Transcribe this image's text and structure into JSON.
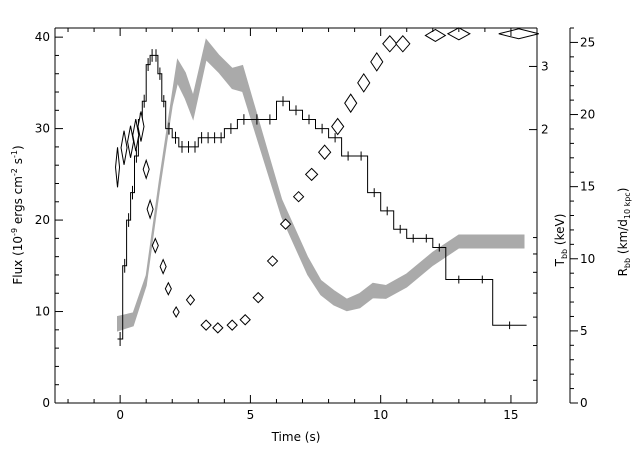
{
  "chart_data": {
    "type": "line",
    "xlabel": "Time (s)",
    "xlim": [
      -2.5,
      16
    ],
    "x_ticks": [
      0,
      5,
      10,
      15
    ],
    "y_left": {
      "label_main": "Flux (10",
      "label_exp1": "-9",
      "label_mid": " ergs cm",
      "label_exp2": "-2",
      "label_mid2": " s",
      "label_exp3": "-1",
      "label_end": ")",
      "lim": [
        0,
        41
      ],
      "ticks": [
        0,
        10,
        20,
        30,
        40
      ]
    },
    "y_mid": {
      "label_main": "T",
      "label_sub": "bb",
      "label_unit": " (keV)",
      "lim": [
        0.3457,
        3.84
      ],
      "ticks": [
        2,
        3
      ],
      "log": true
    },
    "y_right": {
      "label_main": "R",
      "label_sub1": "bb",
      "label_mid": " (km/d",
      "label_sub2": "10 kpc",
      "label_end": ")",
      "lim": [
        0,
        26
      ],
      "ticks": [
        0,
        5,
        10,
        15,
        20,
        25
      ]
    },
    "series": [
      {
        "style": "histogram",
        "axis": "left",
        "edges": [
          -0.1,
          0.1,
          0.25,
          0.4,
          0.55,
          0.7,
          0.85,
          1.0,
          1.15,
          1.3,
          1.45,
          1.6,
          1.75,
          2.0,
          2.25,
          2.5,
          2.75,
          3.0,
          3.25,
          3.5,
          3.75,
          4.0,
          4.5,
          5.0,
          5.5,
          6.0,
          6.5,
          7.0,
          7.5,
          8.0,
          8.5,
          9.0,
          9.5,
          10.0,
          10.5,
          11.0,
          11.5,
          12.0,
          12.5,
          13.5,
          14.3,
          15.6
        ],
        "values": [
          7,
          15,
          20,
          23,
          27,
          31,
          33,
          37,
          38,
          38,
          36,
          33,
          30,
          29,
          28,
          28,
          28,
          29,
          29,
          29,
          29,
          30,
          31,
          31,
          31,
          33,
          32,
          31,
          30,
          29,
          27,
          27,
          23,
          21,
          19,
          18,
          18,
          17,
          13.5,
          13.5,
          8.5
        ]
      },
      {
        "style": "band",
        "axis": "right",
        "x": [
          -0.1,
          0.5,
          1.0,
          1.5,
          2.0,
          2.2,
          2.5,
          2.8,
          3.3,
          3.8,
          4.3,
          4.7,
          5.2,
          5.7,
          6.2,
          6.7,
          7.2,
          7.7,
          8.2,
          8.7,
          9.2,
          9.7,
          10.2,
          11.0,
          12.0,
          13.0,
          15.5
        ],
        "center": [
          5.5,
          5.8,
          8.5,
          15,
          21,
          23,
          22,
          20.5,
          24.5,
          23.5,
          22.5,
          22.5,
          19.5,
          16.5,
          13.5,
          11.5,
          9.5,
          8.0,
          7.3,
          6.8,
          7.1,
          7.8,
          7.7,
          8.5,
          10.0,
          11.2,
          11.2
        ],
        "halfwidth": [
          0.5,
          0.45,
          0.35,
          0.35,
          0.4,
          0.8,
          0.9,
          0.8,
          0.7,
          0.6,
          0.7,
          0.9,
          0.8,
          0.7,
          0.6,
          0.6,
          0.6,
          0.5,
          0.5,
          0.4,
          0.5,
          0.5,
          0.45,
          0.45,
          0.45,
          0.45,
          0.45
        ]
      },
      {
        "style": "diamond",
        "axis": "mid",
        "x": [
          -0.1,
          0.15,
          0.4,
          0.6,
          0.8,
          1.0,
          1.15,
          1.35,
          1.65,
          1.85,
          2.15,
          2.7,
          3.3,
          3.75,
          4.3,
          4.8,
          5.3,
          5.85,
          6.35,
          6.85,
          7.35,
          7.85,
          8.35,
          8.85,
          9.35,
          9.85,
          10.35,
          10.85,
          12.1,
          13.0,
          15.3
        ],
        "y": [
          1.57,
          1.78,
          1.85,
          1.93,
          2.04,
          1.55,
          1.2,
          0.95,
          0.83,
          0.72,
          0.62,
          0.67,
          0.57,
          0.56,
          0.57,
          0.59,
          0.68,
          0.86,
          1.09,
          1.3,
          1.5,
          1.73,
          2.04,
          2.37,
          2.7,
          3.09,
          3.47,
          3.47,
          3.66,
          3.7,
          3.7
        ],
        "hw": [
          2,
          3,
          3,
          3,
          3,
          3,
          3,
          3,
          3,
          3,
          3,
          4,
          5,
          5,
          5,
          5,
          5,
          5,
          5,
          5,
          6,
          6,
          6,
          6,
          6,
          6,
          7,
          7,
          10,
          11,
          20
        ],
        "hh": [
          20,
          17,
          16,
          16,
          15,
          9,
          9,
          7,
          7,
          6,
          5,
          5,
          5,
          5,
          5,
          5,
          5,
          5,
          5,
          5,
          6,
          7,
          8,
          9,
          9,
          9,
          8,
          8,
          6,
          6,
          5
        ]
      }
    ]
  }
}
